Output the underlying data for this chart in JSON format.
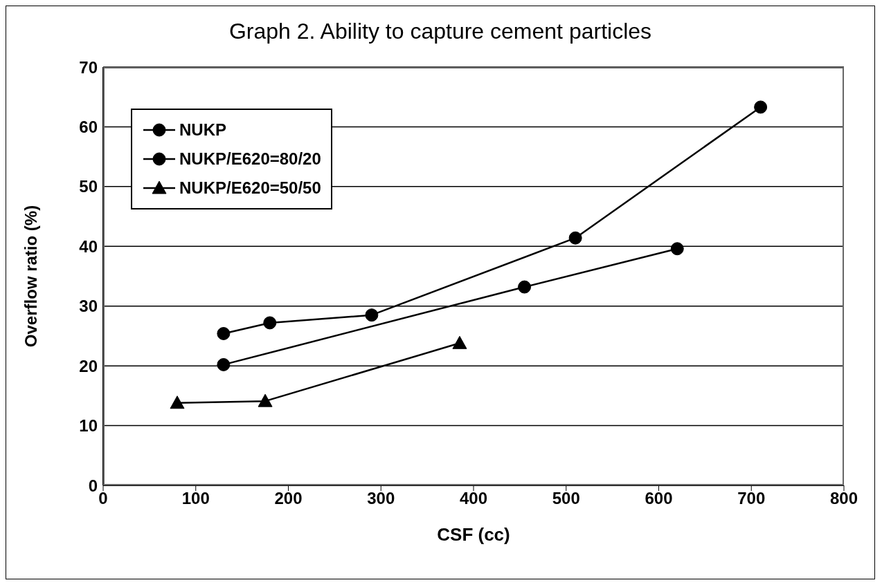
{
  "chart_data": {
    "type": "line",
    "title": "Graph 2.  Ability to capture cement particles",
    "xlabel": "CSF (cc)",
    "ylabel": "Overflow ratio (%)",
    "xlim": [
      0,
      800
    ],
    "xticks": [
      0,
      100,
      200,
      300,
      400,
      500,
      600,
      700,
      800
    ],
    "ylim": [
      0,
      70
    ],
    "yticks": [
      0,
      10,
      20,
      30,
      40,
      50,
      60,
      70
    ],
    "grid": "y",
    "legend": "top left",
    "line_style": "solid",
    "series": [
      {
        "name": "NUKP",
        "color": "#000000",
        "marker": "circle",
        "x": [
          130,
          180,
          290,
          510,
          710
        ],
        "values": [
          25.4,
          27.2,
          28.5,
          41.4,
          63.3
        ]
      },
      {
        "name": "NUKP/E620=80/20",
        "color": "#000000",
        "marker": "circle",
        "x": [
          130,
          455,
          620
        ],
        "values": [
          20.2,
          33.2,
          39.6
        ]
      },
      {
        "name": "NUKP/E620=50/50",
        "color": "#000000",
        "marker": "triangle",
        "x": [
          80,
          175,
          385
        ],
        "values": [
          13.8,
          14.1,
          23.8
        ]
      }
    ]
  }
}
